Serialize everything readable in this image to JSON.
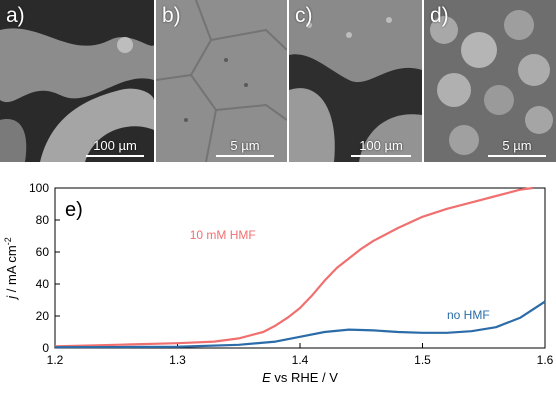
{
  "panels": [
    {
      "label": "a)",
      "scale": "100 µm"
    },
    {
      "label": "b)",
      "scale": "5 µm"
    },
    {
      "label": "c)",
      "scale": "100 µm"
    },
    {
      "label": "d)",
      "scale": "5 µm"
    }
  ],
  "plot": {
    "panel_label": "e)",
    "ylabel_italic": "j",
    "ylabel_rest": " / mA cm",
    "ylabel_sup": "-2",
    "xlabel_italic": "E",
    "xlabel_rest": " vs  RHE / V"
  },
  "chart_data": {
    "type": "line",
    "xlabel": "E vs RHE / V",
    "ylabel": "j / mA cm-2",
    "xlim": [
      1.2,
      1.6
    ],
    "ylim": [
      0,
      100
    ],
    "xticks": [
      "1.2",
      "1.3",
      "1.4",
      "1.5",
      "1.6"
    ],
    "yticks": [
      "0",
      "20",
      "40",
      "60",
      "80",
      "100"
    ],
    "series": [
      {
        "name": "10 mM HMF",
        "color": "#f07070",
        "x": [
          1.2,
          1.25,
          1.3,
          1.33,
          1.35,
          1.37,
          1.38,
          1.39,
          1.4,
          1.41,
          1.42,
          1.43,
          1.44,
          1.45,
          1.46,
          1.48,
          1.5,
          1.52,
          1.54,
          1.56,
          1.58,
          1.59
        ],
        "y": [
          1,
          2,
          3,
          4,
          6,
          10,
          14,
          19,
          25,
          33,
          42,
          50,
          56,
          62,
          67,
          75,
          82,
          87,
          91,
          95,
          99,
          100
        ]
      },
      {
        "name": "no HMF",
        "color": "#2b6ca8",
        "x": [
          1.2,
          1.25,
          1.3,
          1.35,
          1.38,
          1.4,
          1.42,
          1.44,
          1.46,
          1.48,
          1.5,
          1.52,
          1.54,
          1.56,
          1.58,
          1.6
        ],
        "y": [
          0.5,
          0.6,
          0.8,
          2,
          4,
          7,
          10,
          11.5,
          11,
          10,
          9.5,
          9.5,
          10.5,
          13,
          19,
          29
        ]
      }
    ],
    "annotations": [
      {
        "text": "10 mM HMF",
        "color": "#f07070"
      },
      {
        "text": "no HMF",
        "color": "#2b6ca8"
      }
    ]
  }
}
